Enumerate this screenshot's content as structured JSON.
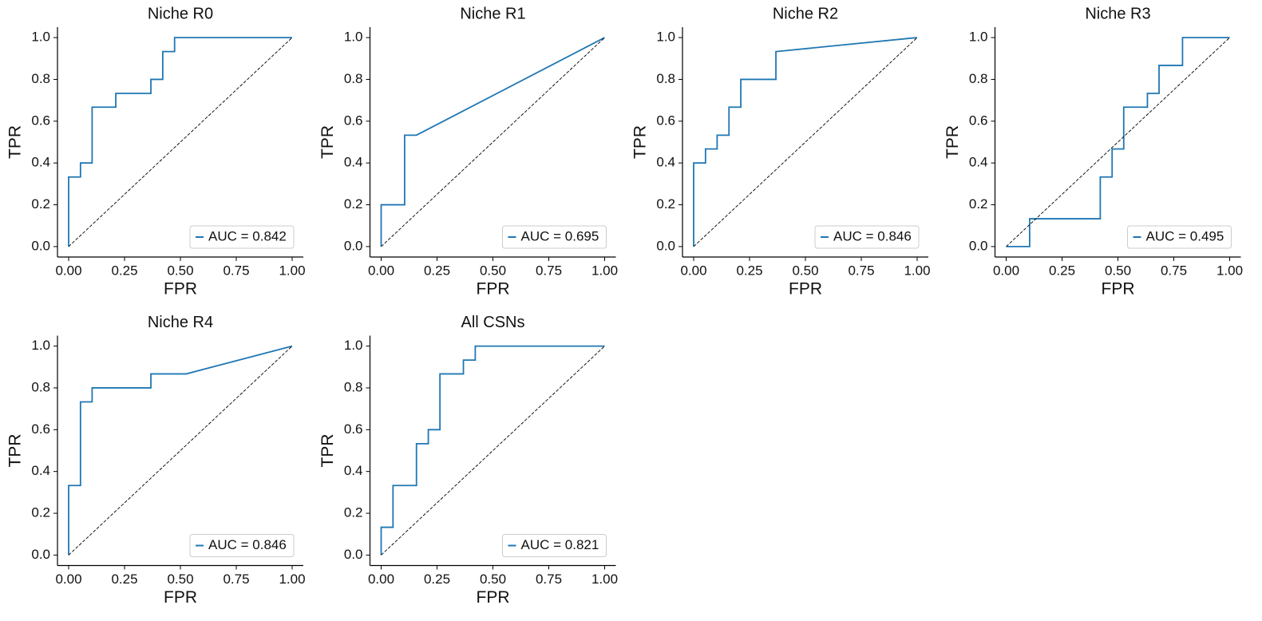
{
  "chart_data": [
    {
      "type": "line",
      "title": "Niche R0",
      "xlabel": "FPR",
      "ylabel": "TPR",
      "xlim": [
        -0.05,
        1.05
      ],
      "ylim": [
        -0.05,
        1.05
      ],
      "xticks": [
        {
          "value": 0,
          "label": "0.00"
        },
        {
          "value": 0.25,
          "label": "0.25"
        },
        {
          "value": 0.5,
          "label": "0.50"
        },
        {
          "value": 0.75,
          "label": "0.75"
        },
        {
          "value": 1,
          "label": "1.00"
        }
      ],
      "yticks": [
        {
          "value": 0,
          "label": "0.0"
        },
        0.2,
        0.4,
        0.6,
        0.8,
        {
          "value": 1,
          "label": "1.0"
        }
      ],
      "legend": "lower right",
      "grid": false,
      "series": [
        {
          "name": "AUC = 0.842",
          "color": "#1f77b4",
          "x": [
            0,
            0,
            0.053,
            0.053,
            0.105,
            0.105,
            0.211,
            0.211,
            0.368,
            0.368,
            0.421,
            0.421,
            0.474,
            0.474,
            1
          ],
          "values": [
            0,
            0.333,
            0.333,
            0.4,
            0.4,
            0.667,
            0.667,
            0.733,
            0.733,
            0.8,
            0.8,
            0.933,
            0.933,
            1,
            1
          ]
        },
        {
          "color": "#000000",
          "linestyle": "dashed",
          "x": [
            0,
            1
          ],
          "values": [
            0,
            1
          ]
        }
      ]
    },
    {
      "type": "line",
      "title": "Niche R1",
      "xlabel": "FPR",
      "ylabel": "TPR",
      "xlim": [
        -0.05,
        1.05
      ],
      "ylim": [
        -0.05,
        1.05
      ],
      "xticks": [
        {
          "value": 0,
          "label": "0.00"
        },
        {
          "value": 0.25,
          "label": "0.25"
        },
        {
          "value": 0.5,
          "label": "0.50"
        },
        {
          "value": 0.75,
          "label": "0.75"
        },
        {
          "value": 1,
          "label": "1.00"
        }
      ],
      "yticks": [
        {
          "value": 0,
          "label": "0.0"
        },
        0.2,
        0.4,
        0.6,
        0.8,
        {
          "value": 1,
          "label": "1.0"
        }
      ],
      "legend": "lower right",
      "grid": false,
      "series": [
        {
          "name": "AUC = 0.695",
          "color": "#1f77b4",
          "x": [
            0,
            0,
            0.105,
            0.105,
            0.158,
            1
          ],
          "values": [
            0,
            0.2,
            0.2,
            0.533,
            0.533,
            1
          ]
        },
        {
          "color": "#000000",
          "linestyle": "dashed",
          "x": [
            0,
            1
          ],
          "values": [
            0,
            1
          ]
        }
      ]
    },
    {
      "type": "line",
      "title": "Niche R2",
      "xlabel": "FPR",
      "ylabel": "TPR",
      "xlim": [
        -0.05,
        1.05
      ],
      "ylim": [
        -0.05,
        1.05
      ],
      "xticks": [
        {
          "value": 0,
          "label": "0.00"
        },
        {
          "value": 0.25,
          "label": "0.25"
        },
        {
          "value": 0.5,
          "label": "0.50"
        },
        {
          "value": 0.75,
          "label": "0.75"
        },
        {
          "value": 1,
          "label": "1.00"
        }
      ],
      "yticks": [
        {
          "value": 0,
          "label": "0.0"
        },
        0.2,
        0.4,
        0.6,
        0.8,
        {
          "value": 1,
          "label": "1.0"
        }
      ],
      "legend": "lower right",
      "grid": false,
      "series": [
        {
          "name": "AUC = 0.846",
          "color": "#1f77b4",
          "x": [
            0,
            0,
            0.053,
            0.053,
            0.105,
            0.105,
            0.158,
            0.158,
            0.211,
            0.211,
            0.368,
            0.368,
            1
          ],
          "values": [
            0,
            0.4,
            0.4,
            0.467,
            0.467,
            0.533,
            0.533,
            0.667,
            0.667,
            0.8,
            0.8,
            0.933,
            1
          ]
        },
        {
          "color": "#000000",
          "linestyle": "dashed",
          "x": [
            0,
            1
          ],
          "values": [
            0,
            1
          ]
        }
      ]
    },
    {
      "type": "line",
      "title": "Niche R3",
      "xlabel": "FPR",
      "ylabel": "TPR",
      "xlim": [
        -0.05,
        1.05
      ],
      "ylim": [
        -0.05,
        1.05
      ],
      "xticks": [
        {
          "value": 0,
          "label": "0.00"
        },
        {
          "value": 0.25,
          "label": "0.25"
        },
        {
          "value": 0.5,
          "label": "0.50"
        },
        {
          "value": 0.75,
          "label": "0.75"
        },
        {
          "value": 1,
          "label": "1.00"
        }
      ],
      "yticks": [
        {
          "value": 0,
          "label": "0.0"
        },
        0.2,
        0.4,
        0.6,
        0.8,
        {
          "value": 1,
          "label": "1.0"
        }
      ],
      "legend": "lower right",
      "grid": false,
      "series": [
        {
          "name": "AUC = 0.495",
          "color": "#1f77b4",
          "x": [
            0,
            0.105,
            0.105,
            0.421,
            0.421,
            0.474,
            0.474,
            0.526,
            0.526,
            0.632,
            0.632,
            0.684,
            0.684,
            0.789,
            0.789,
            1
          ],
          "values": [
            0,
            0,
            0.133,
            0.133,
            0.333,
            0.333,
            0.467,
            0.467,
            0.667,
            0.667,
            0.733,
            0.733,
            0.867,
            0.867,
            1,
            1
          ]
        },
        {
          "color": "#000000",
          "linestyle": "dashed",
          "x": [
            0,
            1
          ],
          "values": [
            0,
            1
          ]
        }
      ]
    },
    {
      "type": "line",
      "title": "Niche R4",
      "xlabel": "FPR",
      "ylabel": "TPR",
      "xlim": [
        -0.05,
        1.05
      ],
      "ylim": [
        -0.05,
        1.05
      ],
      "xticks": [
        {
          "value": 0,
          "label": "0.00"
        },
        {
          "value": 0.25,
          "label": "0.25"
        },
        {
          "value": 0.5,
          "label": "0.50"
        },
        {
          "value": 0.75,
          "label": "0.75"
        },
        {
          "value": 1,
          "label": "1.00"
        }
      ],
      "yticks": [
        {
          "value": 0,
          "label": "0.0"
        },
        0.2,
        0.4,
        0.6,
        0.8,
        {
          "value": 1,
          "label": "1.0"
        }
      ],
      "legend": "lower right",
      "grid": false,
      "series": [
        {
          "name": "AUC = 0.846",
          "color": "#1f77b4",
          "x": [
            0,
            0,
            0.053,
            0.053,
            0.105,
            0.105,
            0.368,
            0.368,
            0.526,
            1
          ],
          "values": [
            0,
            0.333,
            0.333,
            0.733,
            0.733,
            0.8,
            0.8,
            0.867,
            0.867,
            1
          ]
        },
        {
          "color": "#000000",
          "linestyle": "dashed",
          "x": [
            0,
            1
          ],
          "values": [
            0,
            1
          ]
        }
      ]
    },
    {
      "type": "line",
      "title": "All CSNs",
      "xlabel": "FPR",
      "ylabel": "TPR",
      "xlim": [
        -0.05,
        1.05
      ],
      "ylim": [
        -0.05,
        1.05
      ],
      "xticks": [
        {
          "value": 0,
          "label": "0.00"
        },
        {
          "value": 0.25,
          "label": "0.25"
        },
        {
          "value": 0.5,
          "label": "0.50"
        },
        {
          "value": 0.75,
          "label": "0.75"
        },
        {
          "value": 1,
          "label": "1.00"
        }
      ],
      "yticks": [
        {
          "value": 0,
          "label": "0.0"
        },
        0.2,
        0.4,
        0.6,
        0.8,
        {
          "value": 1,
          "label": "1.0"
        }
      ],
      "legend": "lower right",
      "grid": false,
      "series": [
        {
          "name": "AUC = 0.821",
          "color": "#1f77b4",
          "x": [
            0,
            0,
            0.053,
            0.053,
            0.158,
            0.158,
            0.211,
            0.211,
            0.263,
            0.263,
            0.368,
            0.368,
            0.421,
            0.421,
            1
          ],
          "values": [
            0,
            0.133,
            0.133,
            0.333,
            0.333,
            0.533,
            0.533,
            0.6,
            0.6,
            0.867,
            0.867,
            0.933,
            0.933,
            1,
            1
          ]
        },
        {
          "color": "#000000",
          "linestyle": "dashed",
          "x": [
            0,
            1
          ],
          "values": [
            0,
            1
          ]
        }
      ]
    }
  ]
}
